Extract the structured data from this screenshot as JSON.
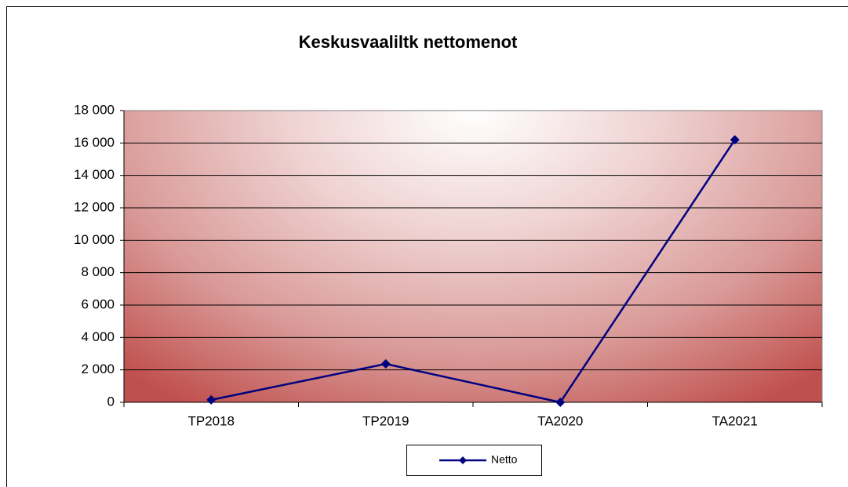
{
  "chart_data": {
    "type": "line",
    "title": "Keskusvaaliltk nettomenot",
    "categories": [
      "TP2018",
      "TP2019",
      "TA2020",
      "TA2021"
    ],
    "series": [
      {
        "name": "Netto",
        "color": "#000080",
        "values": [
          150,
          2370,
          0,
          16200
        ]
      }
    ],
    "ylim": [
      0,
      18000
    ],
    "yticks": [
      0,
      {
        "value": 2000,
        "label": "2 000"
      },
      {
        "value": 4000,
        "label": "4 000"
      },
      {
        "value": 6000,
        "label": "6 000"
      },
      {
        "value": 8000,
        "label": "8 000"
      },
      {
        "value": 10000,
        "label": "10 000"
      },
      {
        "value": 12000,
        "label": "12 000"
      },
      {
        "value": 14000,
        "label": "14 000"
      },
      {
        "value": 16000,
        "label": "16 000"
      },
      {
        "value": 18000,
        "label": "18 000"
      }
    ],
    "grid": true,
    "legend": "bottom"
  }
}
